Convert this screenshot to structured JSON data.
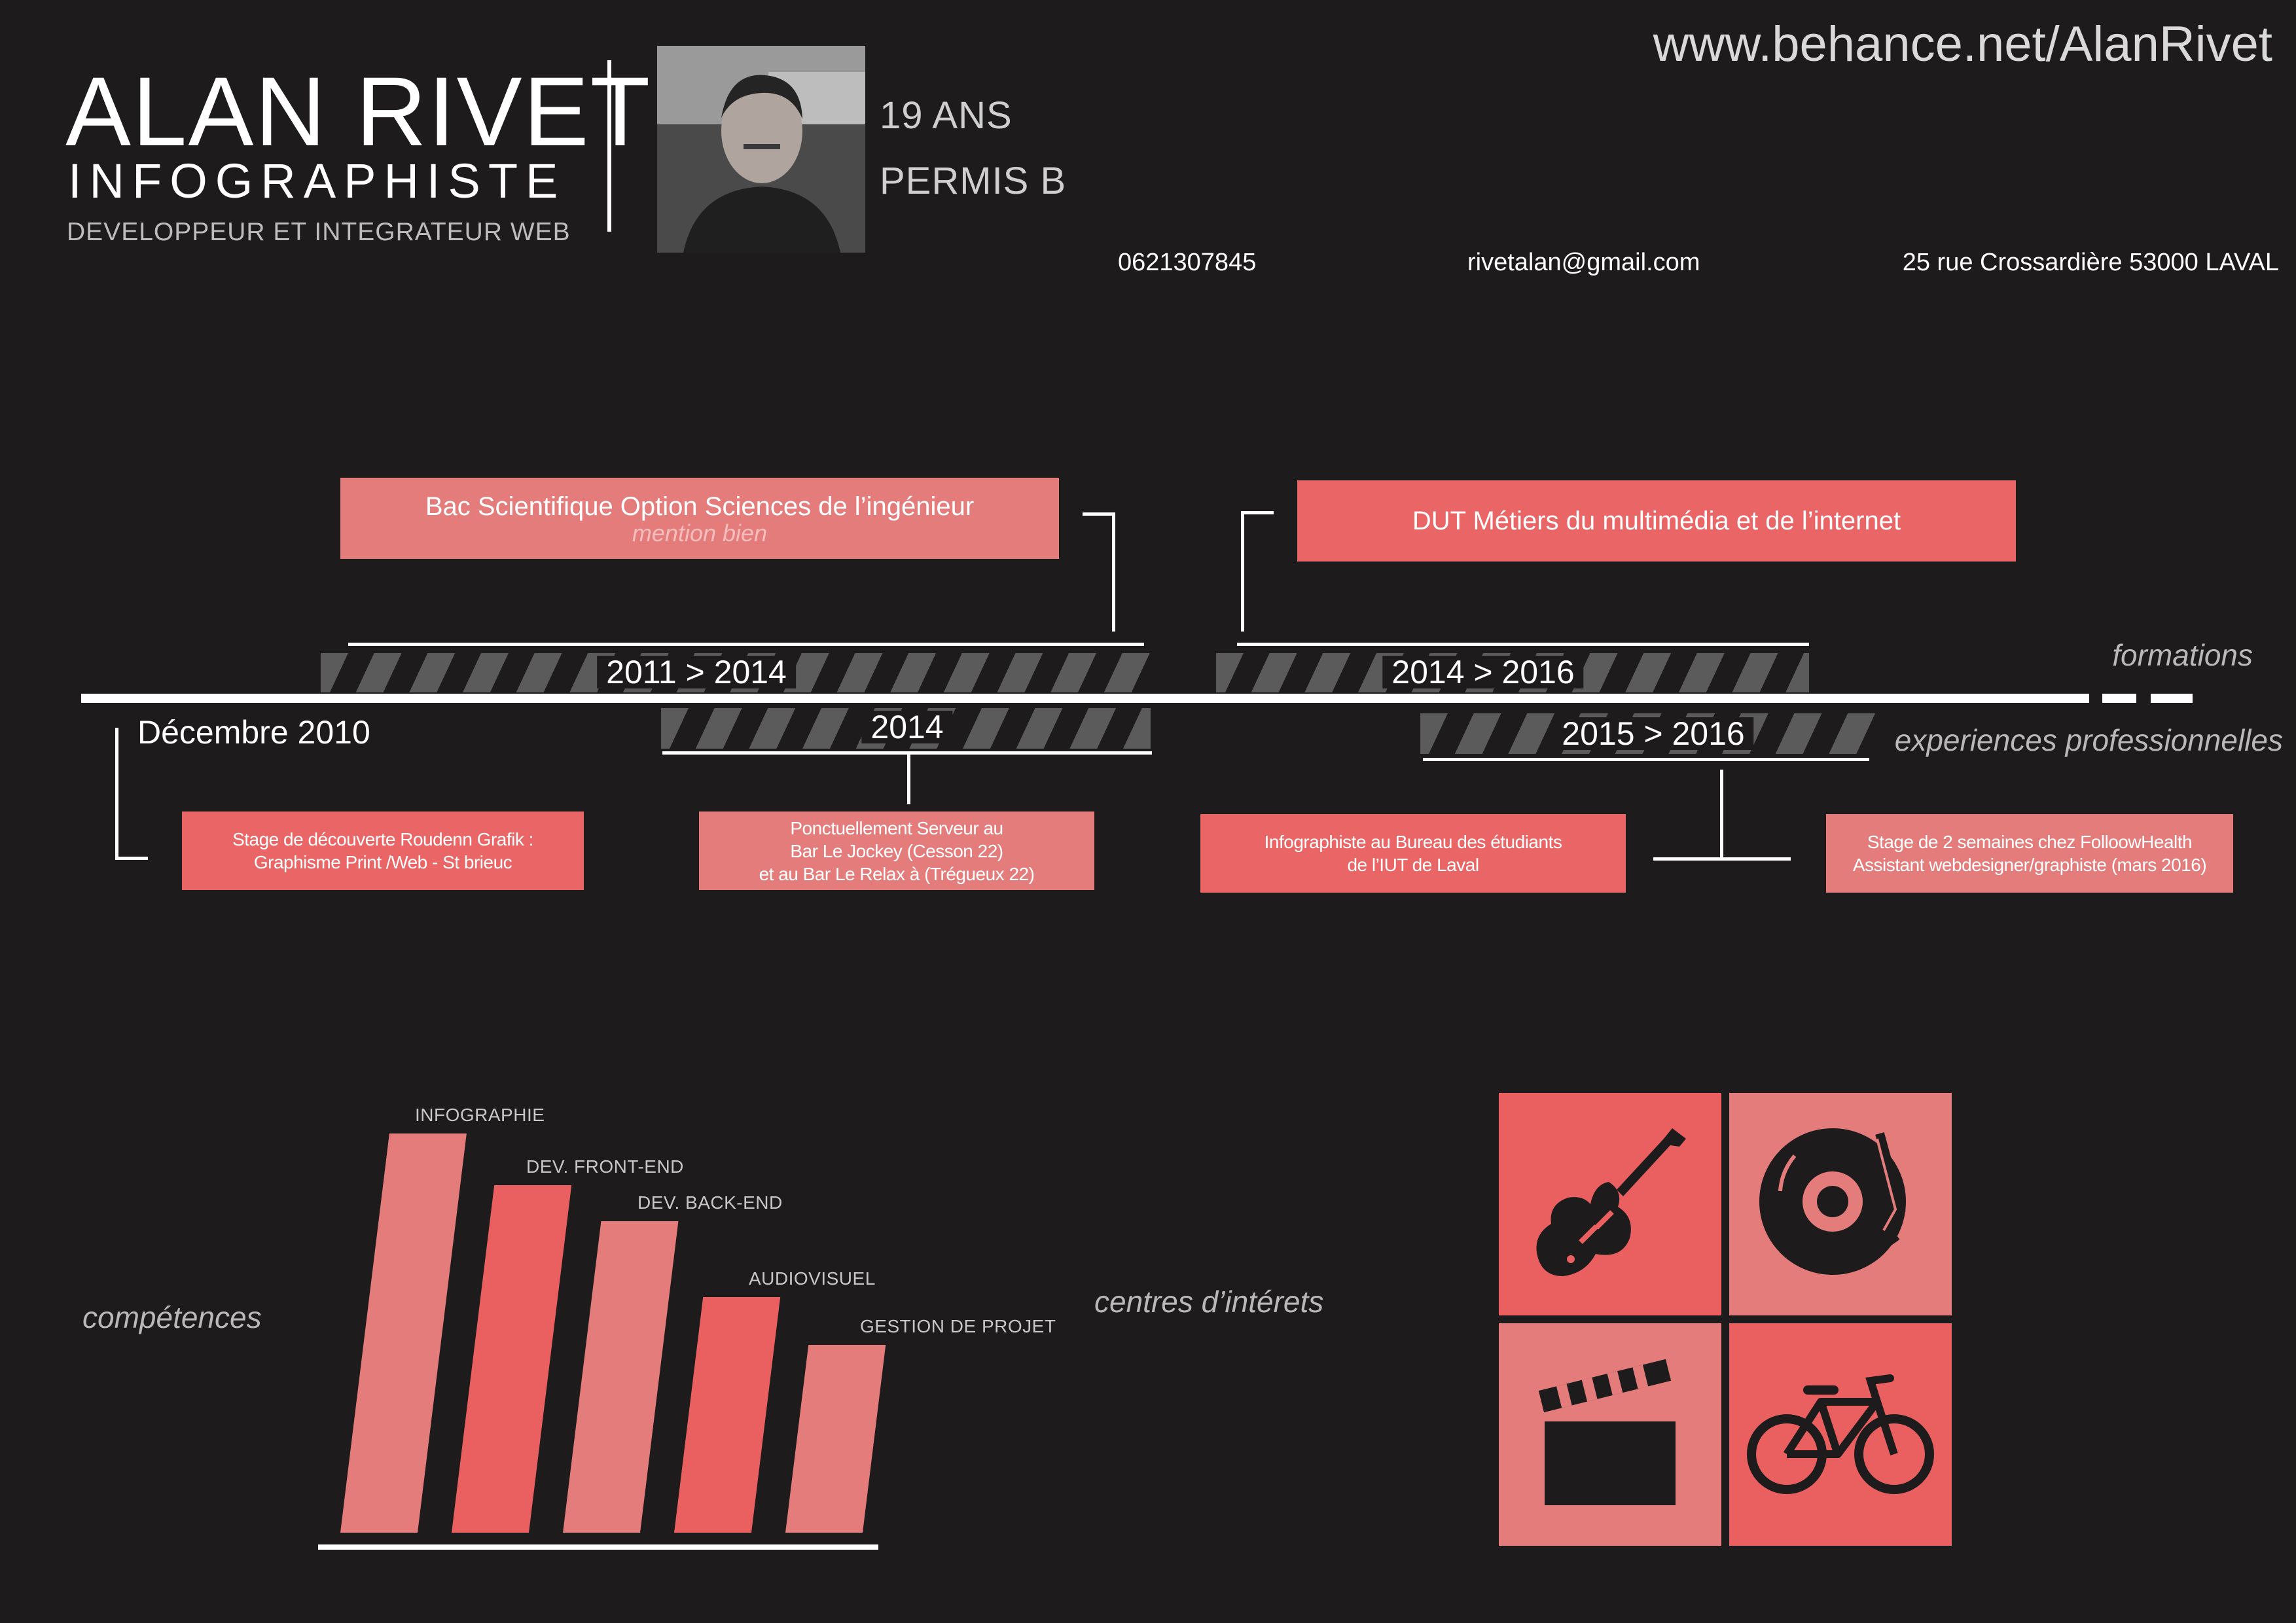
{
  "header": {
    "name": "ALAN RIVET",
    "title": "INFOGRAPHISTE",
    "subtitle": "DEVELOPPEUR ET INTEGRATEUR WEB",
    "age": "19 ANS",
    "license": "PERMIS B",
    "website": "www.behance.net/AlanRivet",
    "phone": "0621307845",
    "email": "rivetalan@gmail.com",
    "address": "25 rue Crossardière 53000 LAVAL"
  },
  "timeline": {
    "formations_label": "formations",
    "experiences_label": "experiences professionnelles",
    "formations": [
      {
        "years": "2011 > 2014",
        "title": "Bac Scientifique Option Sciences de l’ingénieur",
        "note": "mention bien"
      },
      {
        "years": "2014 > 2016",
        "title": "DUT Métiers du multimédia et de l’internet"
      }
    ],
    "experiences": [
      {
        "date": "Décembre 2010",
        "lines": [
          "Stage de découverte Roudenn Grafik :",
          "Graphisme Print /Web - St brieuc"
        ]
      },
      {
        "date": "2014",
        "lines": [
          "Ponctuellement Serveur au",
          "Bar Le Jockey (Cesson 22)",
          "et  au Bar Le Relax à (Trégueux 22)"
        ]
      },
      {
        "date": "2015 > 2016",
        "lines": [
          "Infographiste au Bureau des étudiants",
          "de l’IUT de Laval"
        ]
      },
      {
        "lines": [
          "Stage de 2 semaines chez FolloowHealth",
          "Assistant webdesigner/graphiste (mars 2016)"
        ]
      }
    ]
  },
  "skills": {
    "label": "compétences",
    "items": [
      {
        "name": "INFOGRAPHIE",
        "level": 1.0
      },
      {
        "name": "DEV. FRONT-END",
        "level": 0.87
      },
      {
        "name": "DEV. BACK-END",
        "level": 0.78
      },
      {
        "name": "AUDIOVISUEL",
        "level": 0.59
      },
      {
        "name": "GESTION DE PROJET",
        "level": 0.47
      }
    ]
  },
  "interests": {
    "label": "centres d’intérets",
    "items": [
      "guitar-icon",
      "vinyl-record-icon",
      "clapperboard-icon",
      "bicycle-icon"
    ]
  },
  "colors": {
    "background": "#1d1b1c",
    "accent": "#ea6060",
    "accent_light": "#e47c7c",
    "stripe": "#5b5b5b"
  }
}
